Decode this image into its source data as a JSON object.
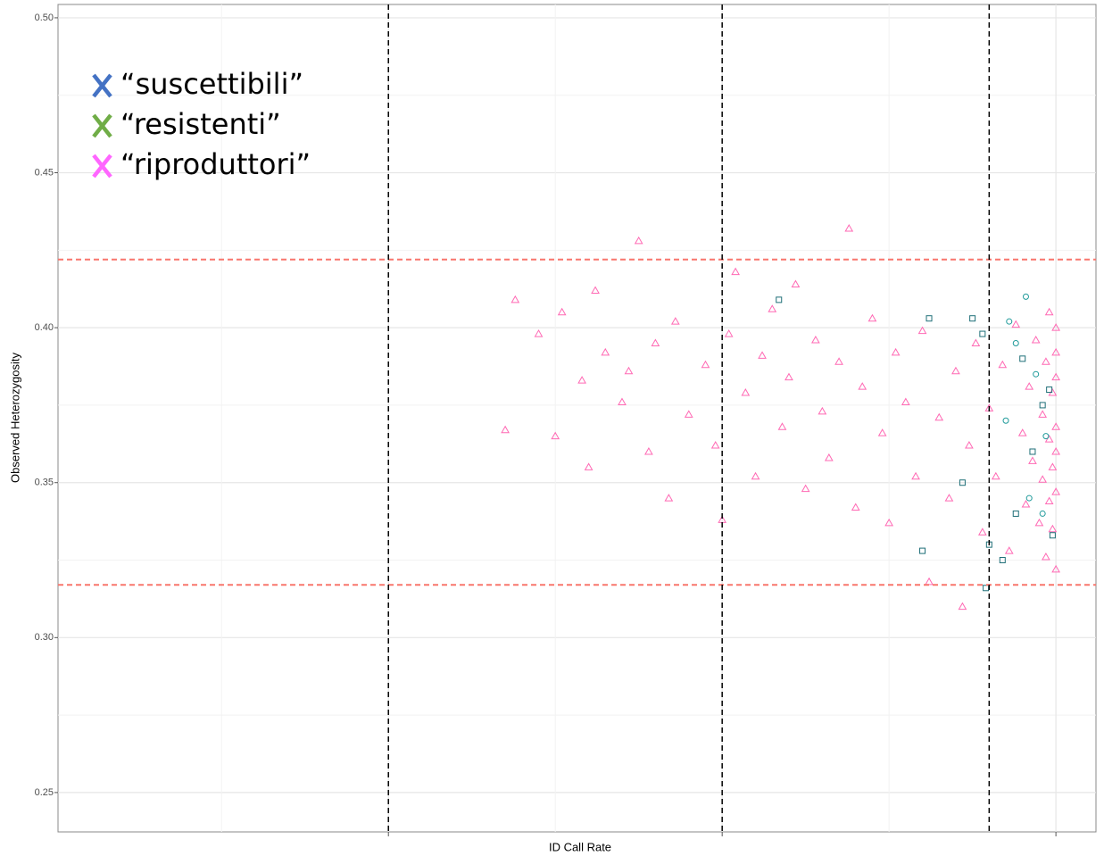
{
  "chart_data": {
    "type": "scatter",
    "x_label": "ID Call Rate",
    "y_label": "Observed Heterozygosity",
    "xlim": [
      0.01,
      3.12
    ],
    "ylim": [
      0.2373,
      0.5043
    ],
    "xticks": [
      1,
      2,
      3
    ],
    "yticks": [
      0.25,
      {
        "value": 0.3,
        "label": "0.30"
      },
      0.35,
      {
        "value": 0.4,
        "label": "0.40"
      },
      0.45,
      {
        "value": 0.5,
        "label": "0.50"
      }
    ],
    "grid": true,
    "vlines": [
      1,
      2,
      2.8
    ],
    "vline_color": "#000000",
    "hlines": [
      0.422,
      0.317
    ],
    "hline_color": "#f8766d",
    "legend": "upper left",
    "series": [
      {
        "name": "“suscettibili”",
        "color": "#4472c4",
        "marker": "square",
        "marker_color": "#1f6f78",
        "x": [
          2.17,
          2.62,
          2.75,
          2.78,
          2.72,
          2.8,
          2.84,
          2.88,
          2.93,
          2.96,
          2.99,
          2.79,
          2.6,
          2.9,
          2.98
        ],
        "values": [
          0.409,
          0.403,
          0.403,
          0.398,
          0.35,
          0.33,
          0.325,
          0.34,
          0.36,
          0.375,
          0.333,
          0.316,
          0.328,
          0.39,
          0.38
        ]
      },
      {
        "name": "“resistenti”",
        "color": "#70ad47",
        "marker": "circle",
        "marker_color": "#1f9a9a",
        "x": [
          2.86,
          2.88,
          2.94,
          2.97,
          2.92,
          2.85,
          2.96,
          2.91
        ],
        "values": [
          0.402,
          0.395,
          0.385,
          0.365,
          0.345,
          0.37,
          0.34,
          0.41
        ]
      },
      {
        "name": "“riproduttori”",
        "color": "#ff66ff",
        "marker": "triangle",
        "marker_color": "#ff69b4",
        "x": [
          1.35,
          1.38,
          1.45,
          1.5,
          1.52,
          1.58,
          1.6,
          1.62,
          1.65,
          1.7,
          1.72,
          1.75,
          1.78,
          1.8,
          1.84,
          1.86,
          1.9,
          1.95,
          1.98,
          2.0,
          2.02,
          2.04,
          2.07,
          2.1,
          2.12,
          2.15,
          2.18,
          2.2,
          2.22,
          2.25,
          2.28,
          2.3,
          2.32,
          2.35,
          2.38,
          2.4,
          2.42,
          2.45,
          2.48,
          2.5,
          2.52,
          2.55,
          2.58,
          2.6,
          2.62,
          2.65,
          2.68,
          2.7,
          2.72,
          2.74,
          2.76,
          2.78,
          2.8,
          2.82,
          2.84,
          2.86,
          2.88,
          2.9,
          2.91,
          2.92,
          2.93,
          2.94,
          2.95,
          2.96,
          2.96,
          2.97,
          2.97,
          2.98,
          2.98,
          2.98,
          2.99,
          2.99,
          2.99,
          3.0,
          3.0,
          3.0,
          3.0,
          3.0,
          3.0,
          3.0
        ],
        "values": [
          0.367,
          0.409,
          0.398,
          0.365,
          0.405,
          0.383,
          0.355,
          0.412,
          0.392,
          0.376,
          0.386,
          0.428,
          0.36,
          0.395,
          0.345,
          0.402,
          0.372,
          0.388,
          0.362,
          0.338,
          0.398,
          0.418,
          0.379,
          0.352,
          0.391,
          0.406,
          0.368,
          0.384,
          0.414,
          0.348,
          0.396,
          0.373,
          0.358,
          0.389,
          0.432,
          0.342,
          0.381,
          0.403,
          0.366,
          0.337,
          0.392,
          0.376,
          0.352,
          0.399,
          0.318,
          0.371,
          0.345,
          0.386,
          0.31,
          0.362,
          0.395,
          0.334,
          0.374,
          0.352,
          0.388,
          0.328,
          0.401,
          0.366,
          0.343,
          0.381,
          0.357,
          0.396,
          0.337,
          0.372,
          0.351,
          0.389,
          0.326,
          0.364,
          0.344,
          0.405,
          0.379,
          0.335,
          0.355,
          0.392,
          0.368,
          0.347,
          0.384,
          0.322,
          0.36,
          0.4
        ]
      }
    ]
  }
}
